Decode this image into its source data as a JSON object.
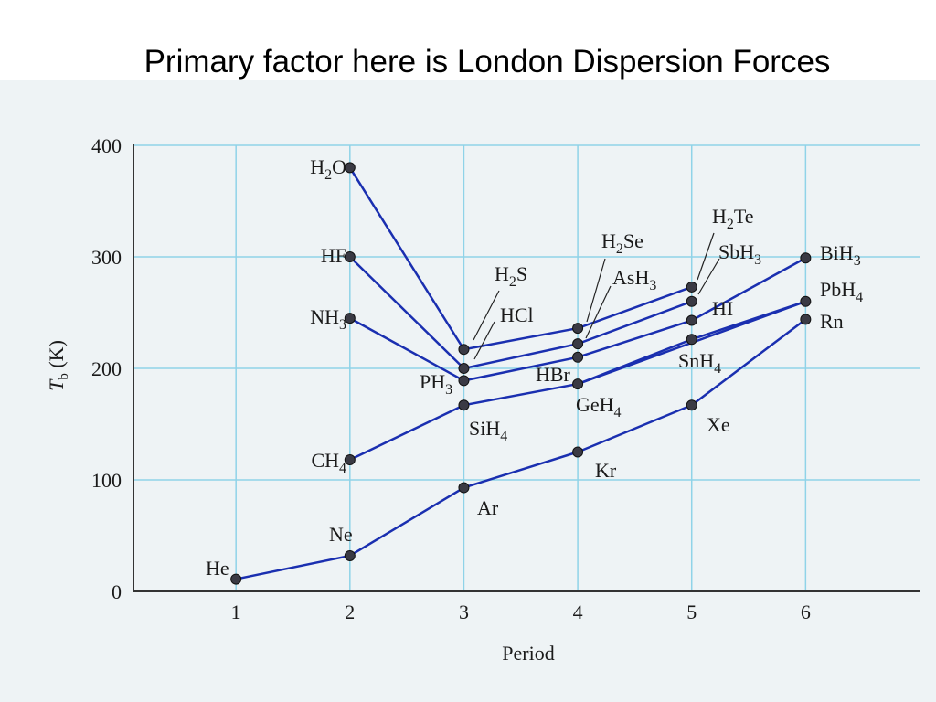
{
  "slide": {
    "title": "Primary factor here is London Dispersion Forces"
  },
  "chart_data": {
    "type": "line",
    "xlabel": "Period",
    "ylabel_main": "T",
    "ylabel_sub": "b",
    "ylabel_unit": " (K)",
    "xlim": [
      0.1,
      7
    ],
    "ylim": [
      0,
      400
    ],
    "x_ticks": [
      1,
      2,
      3,
      4,
      5,
      6
    ],
    "y_ticks": [
      0,
      100,
      200,
      300,
      400
    ],
    "grid": true,
    "colors": {
      "line": "#1a2fb0",
      "point": "#3a3a44",
      "grid": "#8fd3e8",
      "axis": "#333333",
      "background": "#eef3f5"
    },
    "series": [
      {
        "x": [
          1,
          2,
          3,
          4,
          5,
          6
        ],
        "y": [
          11,
          32,
          93,
          125,
          167,
          244
        ],
        "labels": [
          {
            "main": "He",
            "sub": ""
          },
          {
            "main": "Ne",
            "sub": ""
          },
          {
            "main": "Ar",
            "sub": ""
          },
          {
            "main": "Kr",
            "sub": ""
          },
          {
            "main": "Xe",
            "sub": ""
          },
          {
            "main": "Rn",
            "sub": ""
          }
        ]
      },
      {
        "x": [
          2,
          3,
          4,
          6
        ],
        "y": [
          118,
          167,
          186,
          260
        ],
        "labels": [
          {
            "main": "CH",
            "sub": "4"
          },
          {
            "main": "SiH",
            "sub": "4"
          },
          {
            "main": "GeH",
            "sub": "4"
          },
          {
            "main": "SnH",
            "sub": "4"
          },
          {
            "main": "PbH",
            "sub": "4"
          }
        ],
        "note_x5": 226
      },
      {
        "x": [
          2,
          3,
          4,
          5,
          6
        ],
        "y": [
          245,
          189,
          210,
          243,
          299
        ],
        "labels": [
          {
            "main": "NH",
            "sub": "3"
          },
          {
            "main": "PH",
            "sub": "3"
          },
          {
            "main": "AsH",
            "sub": "3"
          },
          {
            "main": "SbH",
            "sub": "3"
          },
          {
            "main": "BiH",
            "sub": "3"
          }
        ]
      },
      {
        "x": [
          2,
          3,
          4,
          5
        ],
        "y": [
          300,
          200,
          222,
          260
        ],
        "labels": [
          {
            "main": "HF",
            "sub": ""
          },
          {
            "main": "HCl",
            "sub": ""
          },
          {
            "main": "HBr",
            "sub": ""
          },
          {
            "main": "HI",
            "sub": ""
          }
        ]
      },
      {
        "x": [
          2,
          3,
          4,
          5
        ],
        "y": [
          380,
          217,
          236,
          273
        ],
        "labels": [
          {
            "main": "H",
            "sub": "2",
            "tail": "O"
          },
          {
            "main": "H",
            "sub": "2",
            "tail": "S"
          },
          {
            "main": "H",
            "sub": "2",
            "tail": "Se"
          },
          {
            "main": "H",
            "sub": "2",
            "tail": "Te"
          }
        ]
      }
    ]
  }
}
